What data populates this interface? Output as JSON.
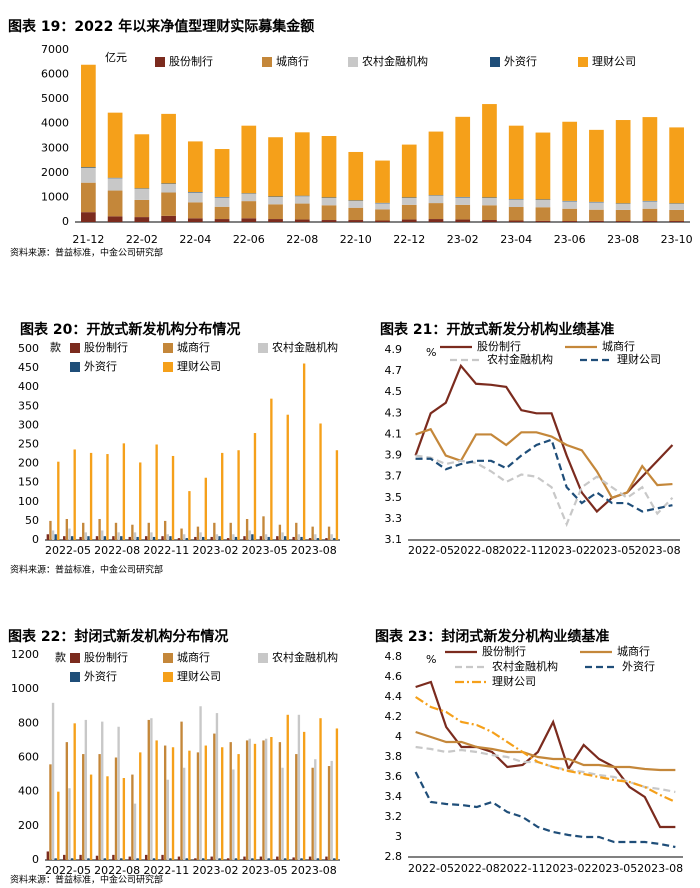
{
  "chart_data": [
    {
      "type": "bar",
      "stacked": true,
      "title": "图表 19：2022 年以来净值型理财实际募集金额",
      "unit": "亿元",
      "source": "资料来源：普益标准，中金公司研究部",
      "categories": [
        "21-12",
        null,
        "22-02",
        null,
        "22-04",
        null,
        "22-06",
        null,
        "22-08",
        null,
        "22-10",
        null,
        "22-12",
        null,
        "23-02",
        null,
        "23-04",
        null,
        "23-06",
        null,
        "23-08",
        null,
        "23-10"
      ],
      "ylim": [
        0,
        7000
      ],
      "yticks": [
        0,
        1000,
        2000,
        3000,
        4000,
        5000,
        6000,
        7000
      ],
      "grid": false,
      "series": [
        {
          "name": "股份制行",
          "color": "#7b2b1e",
          "values": [
            400,
            230,
            200,
            250,
            150,
            120,
            150,
            120,
            100,
            80,
            80,
            60,
            100,
            120,
            100,
            80,
            60,
            50,
            40,
            50,
            40,
            40,
            40
          ]
        },
        {
          "name": "城商行",
          "color": "#c4873a",
          "values": [
            1200,
            1050,
            700,
            950,
            650,
            500,
            700,
            600,
            650,
            600,
            500,
            450,
            600,
            650,
            600,
            600,
            550,
            550,
            500,
            450,
            450,
            500,
            450
          ]
        },
        {
          "name": "农村金融机构",
          "color": "#c8c8c8",
          "values": [
            600,
            500,
            450,
            350,
            400,
            380,
            300,
            300,
            300,
            300,
            280,
            250,
            280,
            300,
            300,
            300,
            300,
            300,
            300,
            300,
            250,
            300,
            250
          ]
        },
        {
          "name": "外资行",
          "color": "#1f4e79",
          "values": [
            30,
            20,
            20,
            20,
            20,
            20,
            20,
            20,
            20,
            20,
            20,
            20,
            20,
            20,
            20,
            20,
            20,
            20,
            20,
            20,
            20,
            20,
            20
          ]
        },
        {
          "name": "理财公司",
          "color": "#f5a01a",
          "values": [
            4170,
            2650,
            2200,
            2830,
            2060,
            1950,
            2750,
            2410,
            2580,
            2500,
            1970,
            1720,
            2150,
            2590,
            3260,
            3800,
            2990,
            2720,
            3220,
            2930,
            3390,
            3410,
            3090
          ]
        }
      ]
    },
    {
      "type": "bar",
      "stacked": false,
      "title": "图表 20：开放式新发机构分布情况",
      "unit": "款",
      "source": "资料来源：普益标准，中金公司研究部",
      "categories": [
        "2022-05",
        null,
        null,
        "2022-08",
        null,
        null,
        "2022-11",
        null,
        null,
        "2023-02",
        null,
        null,
        "2023-05",
        null,
        null,
        "2023-08",
        null,
        null
      ],
      "ylim": [
        0,
        500
      ],
      "yticks": [
        0,
        50,
        100,
        150,
        200,
        250,
        300,
        350,
        400,
        450,
        500
      ],
      "grid": false,
      "series": [
        {
          "name": "股份制行",
          "color": "#7b2b1e",
          "values": [
            15,
            10,
            8,
            10,
            10,
            8,
            10,
            10,
            5,
            8,
            8,
            5,
            10,
            10,
            10,
            8,
            5,
            5
          ]
        },
        {
          "name": "城商行",
          "color": "#c4873a",
          "values": [
            50,
            55,
            45,
            55,
            45,
            40,
            45,
            50,
            30,
            35,
            45,
            45,
            55,
            62,
            40,
            45,
            35,
            35
          ]
        },
        {
          "name": "农村金融机构",
          "color": "#c8c8c8",
          "values": [
            25,
            30,
            20,
            25,
            20,
            20,
            20,
            15,
            15,
            20,
            15,
            15,
            25,
            15,
            20,
            15,
            15,
            15
          ]
        },
        {
          "name": "外资行",
          "color": "#1f4e79",
          "values": [
            15,
            10,
            10,
            10,
            10,
            8,
            8,
            10,
            5,
            8,
            10,
            8,
            15,
            8,
            10,
            8,
            5,
            5
          ]
        },
        {
          "name": "理财公司",
          "color": "#f5a01a",
          "values": [
            205,
            237,
            228,
            225,
            253,
            203,
            250,
            220,
            128,
            163,
            228,
            235,
            280,
            370,
            328,
            462,
            305,
            235
          ]
        }
      ]
    },
    {
      "type": "line",
      "title": "图表 21：开放式新发分机构业绩基准",
      "unit": "%",
      "categories": [
        "2022-05",
        null,
        null,
        "2022-08",
        null,
        null,
        "2022-11",
        null,
        null,
        "2023-02",
        null,
        null,
        "2023-05",
        null,
        null,
        "2023-08",
        null,
        null
      ],
      "ylim": [
        3.1,
        4.9
      ],
      "yticks": [
        3.1,
        3.3,
        3.5,
        3.7,
        3.9,
        4.1,
        4.3,
        4.5,
        4.7,
        4.9
      ],
      "grid": false,
      "series": [
        {
          "name": "股份制行",
          "color": "#7b2b1e",
          "line_style": "solid",
          "values": [
            3.9,
            4.3,
            4.4,
            4.75,
            4.58,
            4.57,
            4.55,
            4.33,
            4.3,
            4.3,
            3.9,
            3.55,
            3.37,
            3.5,
            3.55,
            3.7,
            3.85,
            4.0
          ]
        },
        {
          "name": "城商行",
          "color": "#c4873a",
          "line_style": "solid",
          "values": [
            4.1,
            4.15,
            3.9,
            3.85,
            4.1,
            4.1,
            4.0,
            4.12,
            4.12,
            4.08,
            4.0,
            3.95,
            3.75,
            3.5,
            3.55,
            3.8,
            3.62,
            3.63
          ]
        },
        {
          "name": "农村金融机构",
          "color": "#c8c8c8",
          "line_style": "dashed",
          "values": [
            3.9,
            3.88,
            3.82,
            3.85,
            3.83,
            3.75,
            3.65,
            3.72,
            3.7,
            3.6,
            3.25,
            3.6,
            3.7,
            3.6,
            3.5,
            3.6,
            3.35,
            3.5
          ]
        },
        {
          "name": "理财公司",
          "color": "#1f4e79",
          "line_style": "dashed",
          "values": [
            3.87,
            3.87,
            3.77,
            3.82,
            3.85,
            3.85,
            3.78,
            3.9,
            4.0,
            4.05,
            3.6,
            3.45,
            3.55,
            3.45,
            3.45,
            3.37,
            3.4,
            3.43
          ]
        }
      ]
    },
    {
      "type": "bar",
      "stacked": false,
      "title": "图表 22：封闭式新发机构分布情况",
      "unit": "款",
      "source": "资料来源：普益标准，中金公司研究部",
      "categories": [
        "2022-05",
        null,
        null,
        "2022-08",
        null,
        null,
        "2022-11",
        null,
        null,
        "2023-02",
        null,
        null,
        "2023-05",
        null,
        null,
        "2023-08",
        null,
        null
      ],
      "ylim": [
        0,
        1200
      ],
      "yticks": [
        0,
        200,
        400,
        600,
        800,
        1000,
        1200
      ],
      "grid": false,
      "series": [
        {
          "name": "股份制行",
          "color": "#7b2b1e",
          "values": [
            50,
            30,
            30,
            25,
            30,
            20,
            30,
            30,
            20,
            10,
            20,
            10,
            20,
            20,
            20,
            15,
            20,
            20
          ]
        },
        {
          "name": "城商行",
          "color": "#c4873a",
          "values": [
            560,
            690,
            620,
            620,
            600,
            500,
            820,
            670,
            810,
            630,
            740,
            690,
            700,
            700,
            690,
            620,
            540,
            550
          ]
        },
        {
          "name": "农村金融机构",
          "color": "#c8c8c8",
          "values": [
            920,
            420,
            820,
            810,
            780,
            330,
            830,
            470,
            540,
            900,
            860,
            530,
            710,
            710,
            540,
            850,
            590,
            580
          ]
        },
        {
          "name": "外资行",
          "color": "#1f4e79",
          "values": [
            10,
            10,
            10,
            10,
            10,
            10,
            10,
            10,
            10,
            10,
            10,
            10,
            10,
            10,
            10,
            10,
            10,
            10
          ]
        },
        {
          "name": "理财公司",
          "color": "#f5a01a",
          "values": [
            400,
            800,
            500,
            490,
            480,
            630,
            700,
            660,
            640,
            670,
            660,
            620,
            680,
            720,
            850,
            750,
            830,
            770
          ]
        }
      ]
    },
    {
      "type": "line",
      "title": "图表 23：封闭式新发分机构业绩基准",
      "unit": "%",
      "categories": [
        "2022-05",
        null,
        null,
        "2022-08",
        null,
        null,
        "2022-11",
        null,
        null,
        "2023-02",
        null,
        null,
        "2023-05",
        null,
        null,
        "2023-08",
        null,
        null
      ],
      "ylim": [
        2.8,
        4.8
      ],
      "yticks": [
        2.8,
        3.0,
        3.2,
        3.4,
        3.6,
        3.8,
        4.0,
        4.2,
        4.4,
        4.6,
        4.8
      ],
      "grid": false,
      "series": [
        {
          "name": "股份制行",
          "color": "#7b2b1e",
          "line_style": "solid",
          "values": [
            4.5,
            4.55,
            4.1,
            3.9,
            3.9,
            3.85,
            3.7,
            3.72,
            3.85,
            4.15,
            3.68,
            3.92,
            3.78,
            3.7,
            3.5,
            3.4,
            3.1,
            3.1
          ]
        },
        {
          "name": "城商行",
          "color": "#c4873a",
          "line_style": "solid",
          "values": [
            4.05,
            4.0,
            3.95,
            3.95,
            3.9,
            3.88,
            3.85,
            3.85,
            3.8,
            3.78,
            3.78,
            3.72,
            3.72,
            3.7,
            3.7,
            3.68,
            3.67,
            3.67
          ]
        },
        {
          "name": "农村金融机构",
          "color": "#c8c8c8",
          "line_style": "dashed",
          "values": [
            3.9,
            3.88,
            3.85,
            3.87,
            3.85,
            3.82,
            3.8,
            3.75,
            3.75,
            3.7,
            3.67,
            3.65,
            3.62,
            3.6,
            3.55,
            3.5,
            3.48,
            3.45
          ]
        },
        {
          "name": "外资行",
          "color": "#1f4e79",
          "line_style": "dashed",
          "values": [
            3.65,
            3.35,
            3.33,
            3.32,
            3.3,
            3.35,
            3.25,
            3.2,
            3.1,
            3.05,
            3.02,
            3.0,
            3.0,
            2.95,
            2.95,
            2.95,
            2.93,
            2.9
          ]
        },
        {
          "name": "理财公司",
          "color": "#f5a01a",
          "line_style": "dashdot",
          "values": [
            4.4,
            4.3,
            4.25,
            4.15,
            4.12,
            4.05,
            3.95,
            3.85,
            3.75,
            3.7,
            3.66,
            3.63,
            3.6,
            3.57,
            3.55,
            3.5,
            3.42,
            3.35
          ]
        }
      ]
    }
  ]
}
